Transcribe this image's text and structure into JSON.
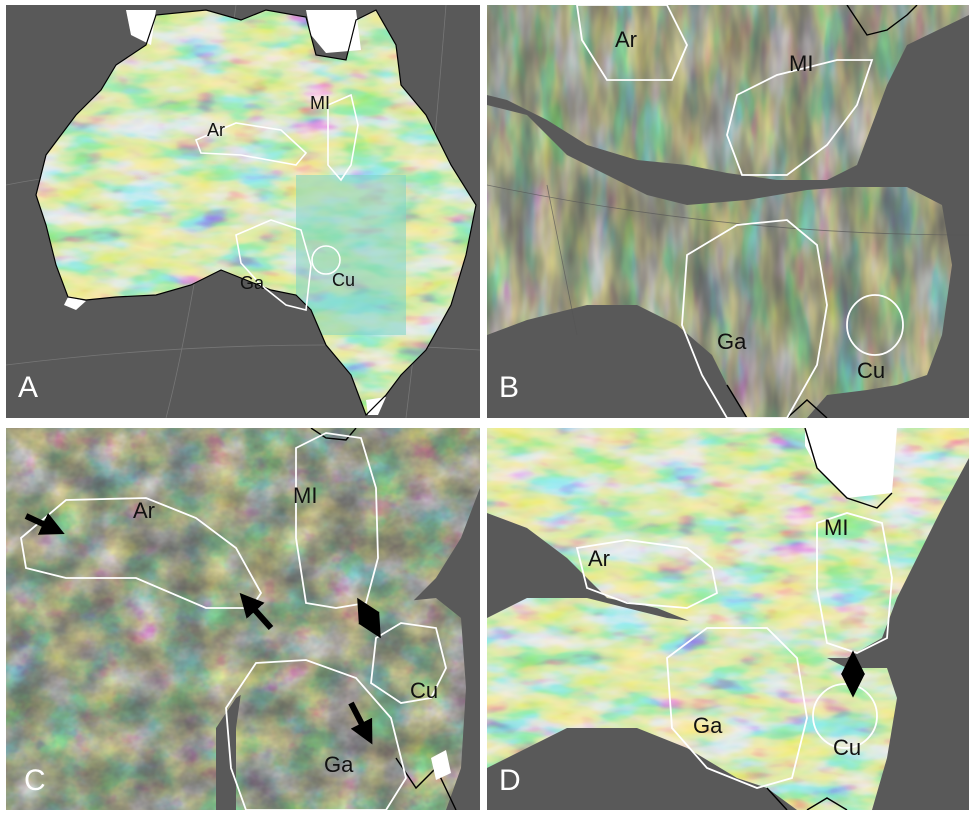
{
  "panels": [
    {
      "letter": "A",
      "labels": {
        "ar": "Ar",
        "mi": "MI",
        "ga": "Ga",
        "cu": "Cu"
      }
    },
    {
      "letter": "B",
      "labels": {
        "ar": "Ar",
        "mi": "MI",
        "ga": "Ga",
        "cu": "Cu"
      }
    },
    {
      "letter": "C",
      "labels": {
        "ar": "Ar",
        "mi": "MI",
        "ga": "Ga",
        "cu": "Cu"
      }
    },
    {
      "letter": "D",
      "labels": {
        "ar": "Ar",
        "mi": "MI",
        "ga": "Ga",
        "cu": "Cu"
      }
    }
  ],
  "colors": {
    "background": "#595959",
    "gutter": "#ffffff",
    "outline": "#ffffff",
    "coastline": "#000000",
    "anomaly_low": "#2b3bd1",
    "anomaly_mid": "#4fc9c0",
    "anomaly_mid2": "#b9d97a",
    "anomaly_high": "#e23a2a"
  },
  "icons": [
    "arrow-icon",
    "double-arrow-icon"
  ]
}
